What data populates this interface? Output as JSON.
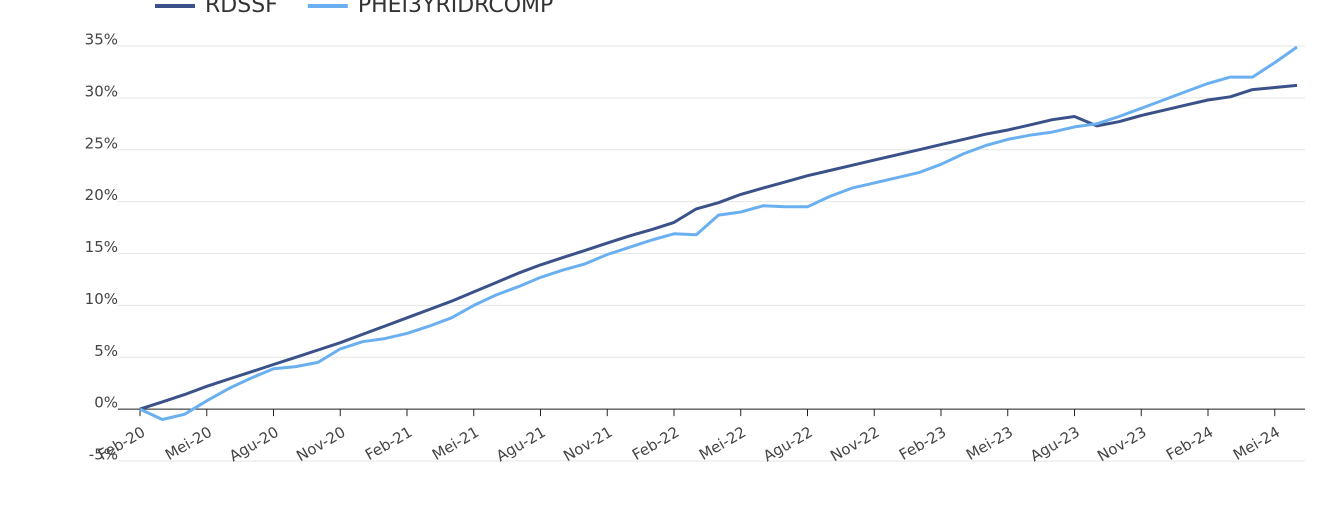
{
  "chart_data": {
    "type": "line",
    "categories": [
      "Feb-20",
      null,
      null,
      "Mei-20",
      null,
      null,
      "Agu-20",
      null,
      null,
      "Nov-20",
      null,
      null,
      "Feb-21",
      null,
      null,
      "Mei-21",
      null,
      null,
      "Agu-21",
      null,
      null,
      "Nov-21",
      null,
      null,
      "Feb-22",
      null,
      null,
      "Mei-22",
      null,
      null,
      "Agu-22",
      null,
      null,
      "Nov-22",
      null,
      null,
      "Feb-23",
      null,
      null,
      "Mei-23",
      null,
      null,
      "Agu-23",
      null,
      null,
      "Nov-23",
      null,
      null,
      "Feb-24",
      null,
      null,
      "Mei-24",
      null
    ],
    "series": [
      {
        "name": "RDSSF",
        "color": "#3a5289",
        "values": [
          0,
          0.7,
          1.4,
          2.2,
          2.9,
          3.6,
          4.3,
          5.0,
          5.7,
          6.4,
          7.2,
          8.0,
          8.8,
          9.6,
          10.4,
          11.3,
          12.2,
          13.1,
          13.9,
          14.6,
          15.3,
          16.0,
          16.7,
          17.3,
          18.0,
          19.3,
          19.9,
          20.7,
          21.3,
          21.9,
          22.5,
          23.0,
          23.5,
          24.0,
          24.5,
          25.0,
          25.5,
          26.0,
          26.5,
          26.9,
          27.4,
          27.9,
          28.2,
          27.3,
          27.7,
          28.3,
          28.8,
          29.3,
          29.8,
          30.1,
          30.8,
          31.0,
          31.2
        ]
      },
      {
        "name": "PHEI3YRIDRCOMP",
        "color": "#6ab0f0",
        "values": [
          0,
          -1.0,
          -0.5,
          0.8,
          2.0,
          3.0,
          3.9,
          4.1,
          4.5,
          5.8,
          6.5,
          6.8,
          7.3,
          8.0,
          8.8,
          10.0,
          11.0,
          11.8,
          12.7,
          13.4,
          14.0,
          14.9,
          15.6,
          16.3,
          16.9,
          16.8,
          18.7,
          19.0,
          19.6,
          19.5,
          19.5,
          20.5,
          21.3,
          21.8,
          22.3,
          22.8,
          23.6,
          24.6,
          25.4,
          26.0,
          26.4,
          26.7,
          27.2,
          27.5,
          28.2,
          29.0,
          29.8,
          30.6,
          31.4,
          32.0,
          32.0,
          33.4,
          34.9
        ]
      }
    ],
    "ylim": [
      -5,
      35
    ],
    "yticks": [
      {
        "value": -5,
        "label": "-5%"
      },
      {
        "value": 0,
        "label": "0%"
      },
      {
        "value": 5,
        "label": "5%"
      },
      {
        "value": 10,
        "label": "10%"
      },
      {
        "value": 15,
        "label": "15%"
      },
      {
        "value": 20,
        "label": "20%"
      },
      {
        "value": 25,
        "label": "25%"
      },
      {
        "value": 30,
        "label": "30%"
      },
      {
        "value": 35,
        "label": "35%"
      }
    ],
    "grid": true
  }
}
